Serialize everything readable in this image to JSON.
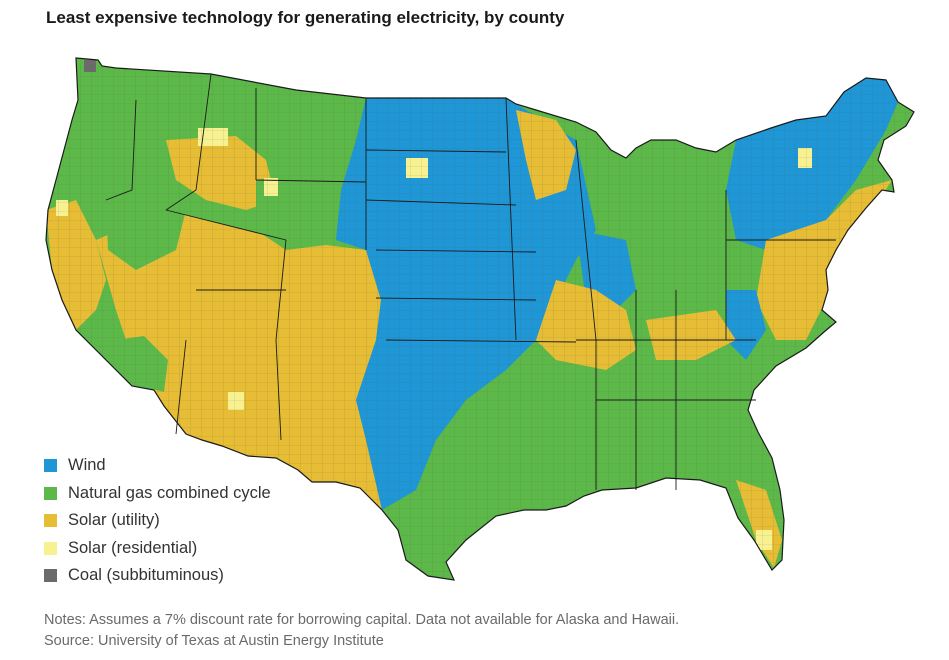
{
  "title": "Least expensive technology for generating electricity, by county",
  "legend": [
    {
      "label": "Wind",
      "color": "#1f96d6",
      "key": "wind"
    },
    {
      "label": "Natural gas combined cycle",
      "color": "#5db84a",
      "key": "gas"
    },
    {
      "label": "Solar (utility)",
      "color": "#e7bd36",
      "key": "solar_utility"
    },
    {
      "label": "Solar (residential)",
      "color": "#f7f191",
      "key": "solar_residential"
    },
    {
      "label": "Coal (subbituminous)",
      "color": "#6b6b6b",
      "key": "coal"
    }
  ],
  "notes": "Notes: Assumes a 7% discount rate for borrowing capital. Data not available for Alaska and Hawaii.",
  "source": "Source: University of Texas at Austin Energy Institute"
}
